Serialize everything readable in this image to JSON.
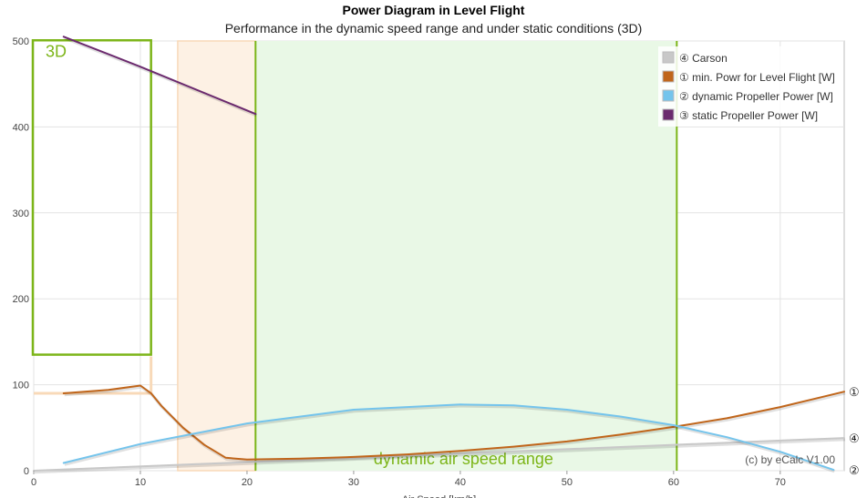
{
  "chart_data": {
    "type": "line",
    "title": "Power Diagram in Level Flight",
    "subtitle": "Performance in the dynamic speed range and under static conditions (3D)",
    "xlabel": "Air Speed [km/h]",
    "ylabel": "",
    "xlim": [
      0,
      76
    ],
    "ylim": [
      0,
      500
    ],
    "x_ticks": [
      "0",
      "10",
      "20",
      "30",
      "40",
      "50",
      "60",
      "70"
    ],
    "y_ticks": [
      "0",
      "100",
      "200",
      "300",
      "400",
      "500"
    ],
    "grid": true,
    "legend_position": "top-right",
    "regions": {
      "static_3d": {
        "label": "3D",
        "x": [
          0,
          11
        ],
        "y": [
          135,
          505
        ],
        "color": "#7cb518"
      },
      "transition": {
        "x": [
          13.5,
          20.8
        ],
        "color": "#f8d9b8"
      },
      "dynamic": {
        "label": "dynamic air speed range",
        "x": [
          20.8,
          60.3
        ],
        "color": "#7cb518"
      }
    },
    "series": [
      {
        "name": "④ Carson",
        "color": "#c8c8c8",
        "end_marker": "④",
        "x": [
          0,
          76
        ],
        "y": [
          0,
          38
        ]
      },
      {
        "name": "① min. Powr for Level Flight [W]",
        "color": "#c0651a",
        "end_marker": "①",
        "x": [
          2.8,
          7,
          10,
          11,
          12,
          14,
          16,
          18,
          20,
          25,
          30,
          35,
          40,
          45,
          50,
          55,
          60,
          65,
          70,
          76
        ],
        "y": [
          90,
          94,
          99,
          90,
          75,
          50,
          30,
          15,
          13,
          14,
          16,
          19,
          23,
          28,
          34,
          42,
          51,
          61,
          74,
          92
        ]
      },
      {
        "name": "② dynamic Propeller Power [W]",
        "color": "#74c4ec",
        "end_marker": "②",
        "x": [
          2.8,
          10,
          20,
          30,
          40,
          45,
          50,
          55,
          60,
          65,
          70,
          75
        ],
        "y": [
          9,
          31,
          55,
          71,
          77,
          76,
          71,
          63,
          53,
          39,
          22,
          1
        ]
      },
      {
        "name": "③ static Propeller Power [W]",
        "color": "#6b2a6e",
        "x": [
          2.8,
          10,
          20.8
        ],
        "y": [
          505,
          470,
          415
        ]
      }
    ],
    "annotations": [
      "(c) by eCalc  V1.00"
    ]
  }
}
